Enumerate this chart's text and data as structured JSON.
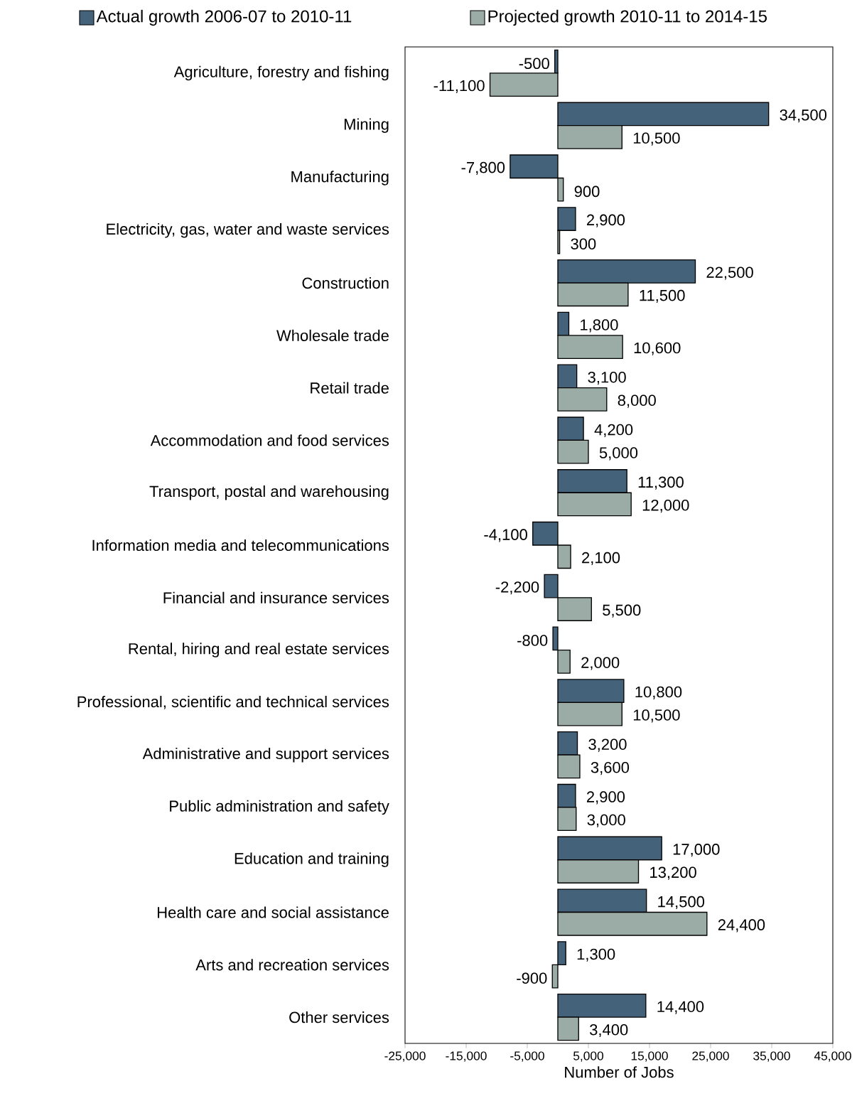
{
  "chart_data": {
    "type": "bar",
    "orientation": "horizontal",
    "xlabel": "Number of Jobs",
    "legend": "top",
    "categories": [
      "Agriculture, forestry and fishing",
      "Mining",
      "Manufacturing",
      "Electricity, gas, water and waste services",
      "Construction",
      "Wholesale trade",
      "Retail trade",
      "Accommodation and food services",
      "Transport, postal and warehousing",
      "Information media and telecommunications",
      "Financial and insurance services",
      "Rental, hiring and real estate services",
      "Professional, scientific and technical services",
      "Administrative and support services",
      "Public administration and safety",
      "Education and training",
      "Health care and social assistance",
      "Arts and recreation services",
      "Other services"
    ],
    "series": [
      {
        "name": "Actual growth 2006-07 to 2010-11",
        "color": "#44627a",
        "values": [
          -500,
          34500,
          -7800,
          2900,
          22500,
          1800,
          3100,
          4200,
          11300,
          -4100,
          -2200,
          -800,
          10800,
          3200,
          2900,
          17000,
          14500,
          1300,
          14400
        ],
        "value_labels": [
          "-500",
          "34,500",
          "-7,800",
          "2,900",
          "22,500",
          "1,800",
          "3,100",
          "4,200",
          "11,300",
          "-4,100",
          "-2,200",
          "-800",
          "10,800",
          "3,200",
          "2,900",
          "17,000",
          "14,500",
          "1,300",
          "14,400"
        ]
      },
      {
        "name": "Projected growth  2010-11 to 2014-15",
        "color": "#9aaca5",
        "values": [
          -11100,
          10500,
          900,
          300,
          11500,
          10600,
          8000,
          5000,
          12000,
          2100,
          5500,
          2000,
          10500,
          3600,
          3000,
          13200,
          24400,
          -900,
          3400
        ],
        "value_labels": [
          "-11,100",
          "10,500",
          "900",
          "300",
          "11,500",
          "10,600",
          "8,000",
          "5,000",
          "12,000",
          "2,100",
          "5,500",
          "2,000",
          "10,500",
          "3,600",
          "3,000",
          "13,200",
          "24,400",
          "-900",
          "3,400"
        ]
      }
    ],
    "xlim": [
      -25000,
      45000
    ],
    "xticks": [
      {
        "value": -25000,
        "label": "-25,000"
      },
      {
        "value": -15000,
        "label": "-15,000"
      },
      {
        "value": -5000,
        "label": "-5,000"
      },
      {
        "value": 5000,
        "label": "5,000"
      },
      {
        "value": 15000,
        "label": "15,000"
      },
      {
        "value": 25000,
        "label": "25,000"
      },
      {
        "value": 35000,
        "label": "35,000"
      },
      {
        "value": 45000,
        "label": "45,000"
      }
    ]
  }
}
